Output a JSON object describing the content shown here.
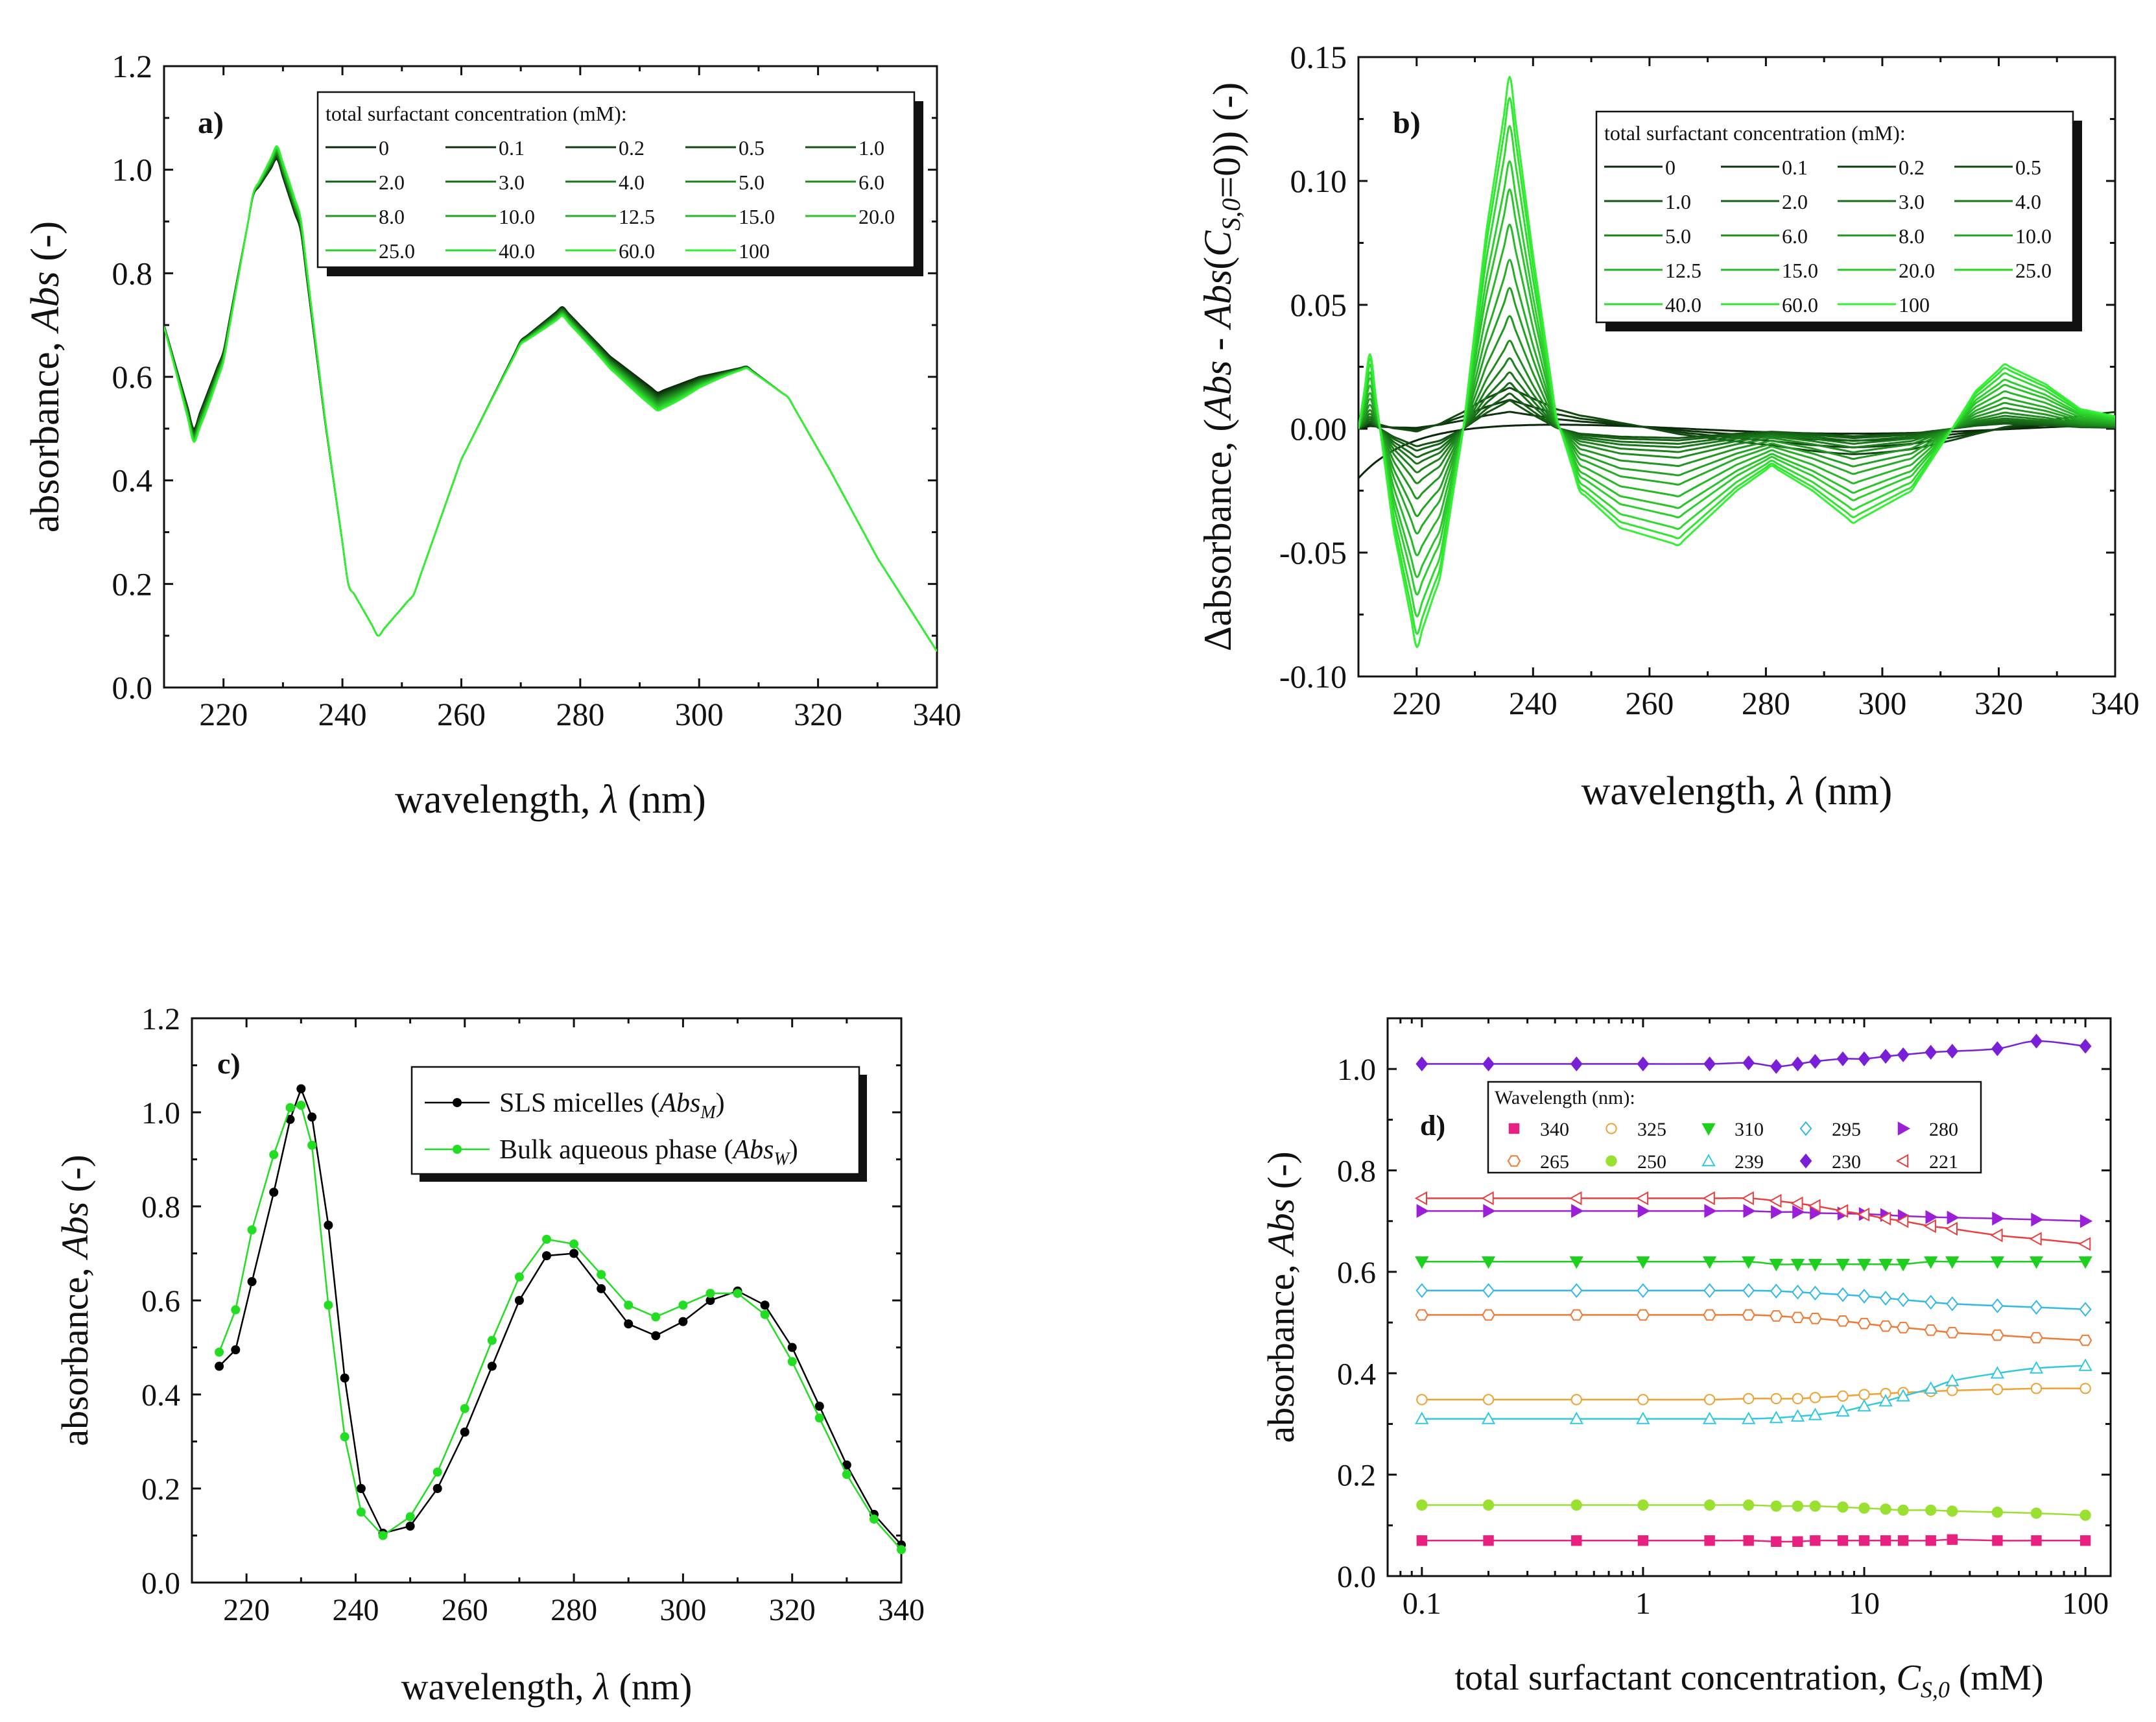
{
  "chart_data": [
    {
      "panel": "a",
      "type": "line",
      "panel_label": "a)",
      "xlabel": "wavelength, λ (nm)",
      "ylabel": "absorbance, Abs (-)",
      "xlim": [
        210,
        340
      ],
      "ylim": [
        0.0,
        1.2
      ],
      "xticks": [
        220,
        240,
        260,
        280,
        300,
        320,
        340
      ],
      "yticks": [
        0.0,
        0.2,
        0.4,
        0.6,
        0.8,
        1.0,
        1.2
      ],
      "xtick_labels": [
        "220",
        "240",
        "260",
        "280",
        "300",
        "320",
        "340"
      ],
      "ytick_labels": [
        "0.0",
        "0.2",
        "0.4",
        "0.6",
        "0.8",
        "1.0",
        "1.2"
      ],
      "legend_title": "total surfactant concentration (mM):",
      "legend_position": "top-right",
      "legend_entries": [
        "0",
        "0.1",
        "0.2",
        "0.5",
        "1.0",
        "2.0",
        "3.0",
        "4.0",
        "5.0",
        "6.0",
        "8.0",
        "10.0",
        "12.5",
        "15.0",
        "20.0",
        "25.0",
        "40.0",
        "60.0",
        "100"
      ],
      "base_spectrum": {
        "x": [
          210,
          215,
          220,
          225,
          229,
          233,
          237,
          241,
          246,
          252,
          260,
          270,
          277,
          285,
          293,
          300,
          308,
          315,
          322,
          330,
          340
        ],
        "y": [
          0.7,
          0.5,
          0.65,
          0.95,
          1.02,
          0.88,
          0.52,
          0.2,
          0.1,
          0.18,
          0.44,
          0.67,
          0.735,
          0.64,
          0.57,
          0.6,
          0.62,
          0.56,
          0.42,
          0.25,
          0.07
        ]
      },
      "delta_scale_at_100mM": 1.0
    },
    {
      "panel": "b",
      "type": "line",
      "panel_label": "b)",
      "xlabel": "wavelength, λ (nm)",
      "ylabel": "Δabsorbance, (Abs - Abs(CS,0=0)) (-)",
      "xlim": [
        210,
        340
      ],
      "ylim": [
        -0.1,
        0.15
      ],
      "xticks": [
        220,
        240,
        260,
        280,
        300,
        320,
        340
      ],
      "yticks": [
        -0.1,
        -0.05,
        0.0,
        0.05,
        0.1,
        0.15
      ],
      "xtick_labels": [
        "220",
        "240",
        "260",
        "280",
        "300",
        "320",
        "340"
      ],
      "ytick_labels": [
        "-0.10",
        "-0.05",
        "0.00",
        "0.05",
        "0.10",
        "0.15"
      ],
      "legend_title": "total surfactant concentration (mM):",
      "legend_position": "top-right",
      "legend_entries": [
        "0",
        "0.1",
        "0.2",
        "0.5",
        "1.0",
        "2.0",
        "3.0",
        "4.0",
        "5.0",
        "6.0",
        "8.0",
        "10.0",
        "12.5",
        "15.0",
        "20.0",
        "25.0",
        "40.0",
        "60.0",
        "100"
      ],
      "delta_profile_100mM": {
        "x": [
          210,
          212,
          216,
          220,
          224,
          228,
          232,
          236,
          240,
          244,
          248,
          255,
          265,
          275,
          281,
          288,
          295,
          305,
          312,
          316,
          321,
          328,
          334,
          340
        ],
        "y": [
          0.0,
          0.03,
          -0.04,
          -0.088,
          -0.06,
          0.0,
          0.08,
          0.142,
          0.07,
          0.005,
          -0.025,
          -0.04,
          -0.047,
          -0.025,
          -0.015,
          -0.025,
          -0.038,
          -0.025,
          0.0,
          0.015,
          0.026,
          0.018,
          0.008,
          0.005
        ]
      },
      "amplitude_fractions": [
        0.0,
        0.02,
        0.04,
        0.06,
        0.08,
        0.1,
        0.13,
        0.16,
        0.2,
        0.25,
        0.32,
        0.4,
        0.48,
        0.58,
        0.68,
        0.76,
        0.86,
        0.94,
        1.0
      ]
    },
    {
      "panel": "c",
      "type": "line",
      "panel_label": "c)",
      "xlabel": "wavelength, λ (nm)",
      "ylabel": "absorbance, Abs (-)",
      "xlim": [
        210,
        340
      ],
      "ylim": [
        0.0,
        1.2
      ],
      "xticks": [
        220,
        240,
        260,
        280,
        300,
        320,
        340
      ],
      "yticks": [
        0.0,
        0.2,
        0.4,
        0.6,
        0.8,
        1.0,
        1.2
      ],
      "xtick_labels": [
        "220",
        "240",
        "260",
        "280",
        "300",
        "320",
        "340"
      ],
      "ytick_labels": [
        "0.0",
        "0.2",
        "0.4",
        "0.6",
        "0.8",
        "1.0",
        "1.2"
      ],
      "legend_position": "top-right",
      "x": [
        215,
        218,
        221,
        225,
        228,
        230,
        232,
        235,
        238,
        241,
        245,
        250,
        255,
        260,
        265,
        270,
        275,
        280,
        285,
        290,
        295,
        300,
        305,
        310,
        315,
        320,
        325,
        330,
        335,
        340
      ],
      "series": [
        {
          "name": "SLS micelles (AbsM)",
          "legend_main": "SLS micelles (",
          "legend_sym": "Abs",
          "legend_sub": "M",
          "legend_close": ")",
          "color": "#000000",
          "values": [
            0.46,
            0.495,
            0.64,
            0.83,
            0.985,
            1.05,
            0.99,
            0.76,
            0.435,
            0.2,
            0.105,
            0.12,
            0.2,
            0.32,
            0.46,
            0.6,
            0.695,
            0.7,
            0.625,
            0.55,
            0.525,
            0.555,
            0.6,
            0.62,
            0.59,
            0.5,
            0.375,
            0.25,
            0.145,
            0.08
          ]
        },
        {
          "name": "Bulk aqueous phase (AbsW)",
          "legend_main": "Bulk aqueous phase (",
          "legend_sym": "Abs",
          "legend_sub": "W",
          "legend_close": ")",
          "color": "#22dd22",
          "values": [
            0.49,
            0.58,
            0.75,
            0.91,
            1.01,
            1.015,
            0.93,
            0.59,
            0.31,
            0.15,
            0.1,
            0.14,
            0.235,
            0.37,
            0.515,
            0.65,
            0.73,
            0.72,
            0.655,
            0.59,
            0.565,
            0.59,
            0.615,
            0.615,
            0.57,
            0.47,
            0.35,
            0.23,
            0.135,
            0.07
          ]
        }
      ]
    },
    {
      "panel": "d",
      "type": "scatter",
      "panel_label": "d)",
      "xlabel": "total surfactant concentration, CS,0 (mM)",
      "ylabel": "absorbance, Abs (-)",
      "xscale": "log",
      "xlim": [
        0.07,
        130
      ],
      "ylim": [
        0.0,
        1.1
      ],
      "xticks": [
        0.1,
        1,
        10,
        100
      ],
      "yticks": [
        0.0,
        0.2,
        0.4,
        0.6,
        0.8,
        1.0
      ],
      "xtick_labels": [
        "0.1",
        "1",
        "10",
        "100"
      ],
      "ytick_labels": [
        "0.0",
        "0.2",
        "0.4",
        "0.6",
        "0.8",
        "1.0"
      ],
      "legend_title": "Wavelength (nm):",
      "legend_position": "top-right",
      "x": [
        0.1,
        0.2,
        0.5,
        1,
        2,
        3,
        4,
        5,
        6,
        8,
        10,
        12.5,
        15,
        20,
        25,
        40,
        60,
        100
      ],
      "series": [
        {
          "name": "340",
          "marker": "square",
          "filled": true,
          "color": "#e8207f",
          "values": [
            0.07,
            0.07,
            0.07,
            0.07,
            0.07,
            0.07,
            0.068,
            0.068,
            0.07,
            0.07,
            0.07,
            0.07,
            0.07,
            0.07,
            0.072,
            0.07,
            0.07,
            0.07
          ]
        },
        {
          "name": "325",
          "marker": "circle",
          "filled": false,
          "color": "#f0a030",
          "values": [
            0.348,
            0.348,
            0.348,
            0.348,
            0.348,
            0.35,
            0.35,
            0.35,
            0.352,
            0.355,
            0.358,
            0.36,
            0.362,
            0.364,
            0.366,
            0.368,
            0.37,
            0.37
          ]
        },
        {
          "name": "310",
          "marker": "triangle-down",
          "filled": true,
          "color": "#1ed01e",
          "values": [
            0.62,
            0.62,
            0.62,
            0.62,
            0.62,
            0.62,
            0.615,
            0.615,
            0.615,
            0.615,
            0.615,
            0.615,
            0.615,
            0.62,
            0.62,
            0.62,
            0.62,
            0.62
          ]
        },
        {
          "name": "295",
          "marker": "diamond",
          "filled": false,
          "color": "#30b8e8",
          "values": [
            0.563,
            0.563,
            0.563,
            0.563,
            0.563,
            0.563,
            0.562,
            0.56,
            0.558,
            0.555,
            0.552,
            0.548,
            0.545,
            0.54,
            0.537,
            0.533,
            0.53,
            0.526
          ]
        },
        {
          "name": "280",
          "marker": "triangle-right",
          "filled": true,
          "color": "#9b1fd8",
          "values": [
            0.72,
            0.72,
            0.72,
            0.72,
            0.72,
            0.72,
            0.718,
            0.718,
            0.716,
            0.715,
            0.714,
            0.712,
            0.71,
            0.708,
            0.707,
            0.705,
            0.703,
            0.7
          ]
        },
        {
          "name": "265",
          "marker": "hexagon",
          "filled": false,
          "color": "#f07830",
          "values": [
            0.515,
            0.515,
            0.515,
            0.515,
            0.515,
            0.515,
            0.513,
            0.51,
            0.508,
            0.503,
            0.498,
            0.493,
            0.49,
            0.485,
            0.48,
            0.475,
            0.47,
            0.465
          ]
        },
        {
          "name": "250",
          "marker": "circle",
          "filled": true,
          "color": "#99e030",
          "values": [
            0.14,
            0.14,
            0.14,
            0.14,
            0.14,
            0.14,
            0.138,
            0.138,
            0.138,
            0.136,
            0.134,
            0.132,
            0.13,
            0.13,
            0.128,
            0.126,
            0.124,
            0.12
          ]
        },
        {
          "name": "239",
          "marker": "triangle-up",
          "filled": false,
          "color": "#30c8e0",
          "values": [
            0.31,
            0.31,
            0.31,
            0.31,
            0.31,
            0.31,
            0.312,
            0.315,
            0.318,
            0.325,
            0.335,
            0.345,
            0.355,
            0.37,
            0.385,
            0.4,
            0.41,
            0.415
          ]
        },
        {
          "name": "230",
          "marker": "diamond",
          "filled": true,
          "color": "#7a1fd8",
          "values": [
            1.01,
            1.01,
            1.01,
            1.01,
            1.01,
            1.012,
            1.005,
            1.01,
            1.015,
            1.02,
            1.02,
            1.025,
            1.028,
            1.033,
            1.035,
            1.04,
            1.055,
            1.045
          ]
        },
        {
          "name": "221",
          "marker": "triangle-left",
          "filled": false,
          "color": "#e84040",
          "values": [
            0.745,
            0.745,
            0.745,
            0.745,
            0.745,
            0.745,
            0.74,
            0.735,
            0.73,
            0.72,
            0.713,
            0.705,
            0.7,
            0.69,
            0.685,
            0.672,
            0.665,
            0.655
          ]
        }
      ]
    }
  ]
}
